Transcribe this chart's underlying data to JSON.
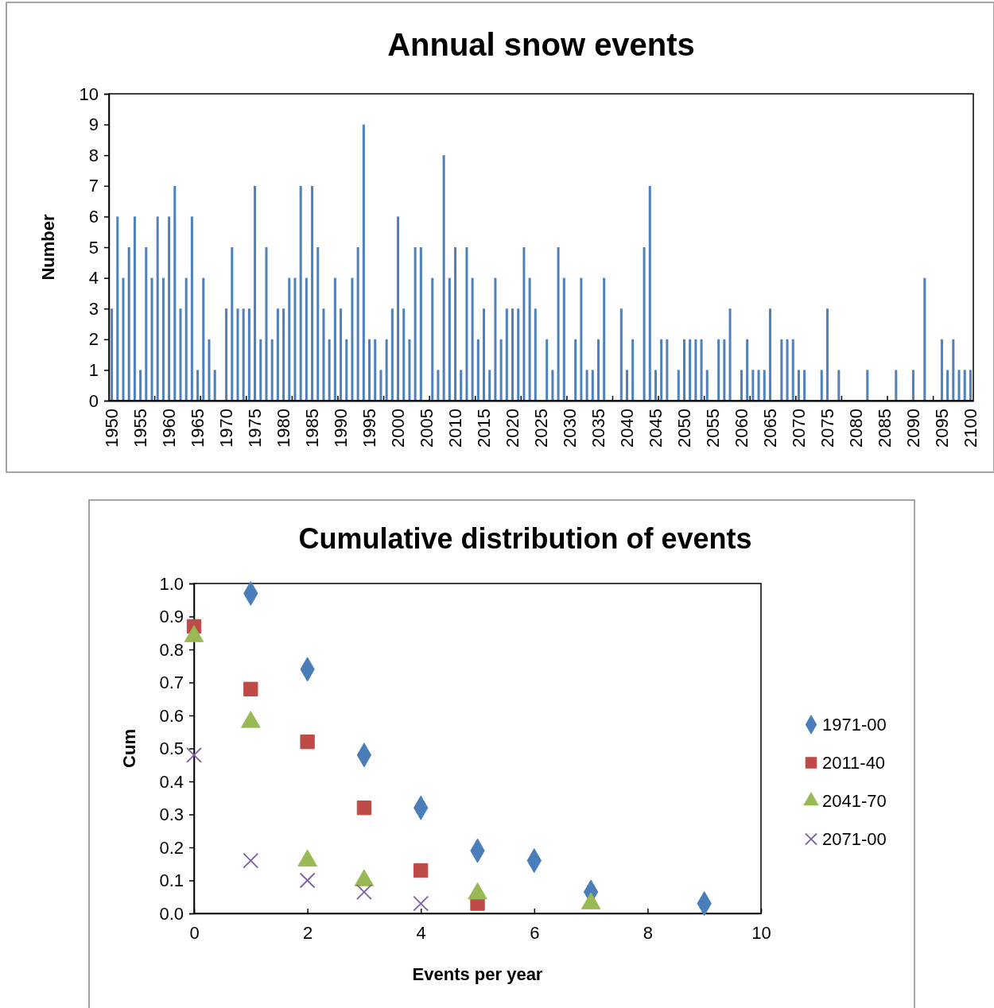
{
  "chart_data": [
    {
      "type": "bar",
      "title": "Annual snow events",
      "ylabel": "Number",
      "color": "#4f81bd",
      "categories": [
        "1950",
        null,
        null,
        null,
        null,
        "1955",
        null,
        null,
        null,
        null,
        "1960",
        null,
        null,
        null,
        null,
        "1965",
        null,
        null,
        null,
        null,
        "1970",
        null,
        null,
        null,
        null,
        "1975",
        null,
        null,
        null,
        null,
        "1980",
        null,
        null,
        null,
        null,
        "1985",
        null,
        null,
        null,
        null,
        "1990",
        null,
        null,
        null,
        null,
        "1995",
        null,
        null,
        null,
        null,
        "2000",
        null,
        null,
        null,
        null,
        "2005",
        null,
        null,
        null,
        null,
        "2010",
        null,
        null,
        null,
        null,
        "2015",
        null,
        null,
        null,
        null,
        "2020",
        null,
        null,
        null,
        null,
        "2025",
        null,
        null,
        null,
        null,
        "2030",
        null,
        null,
        null,
        null,
        "2035",
        null,
        null,
        null,
        null,
        "2040",
        null,
        null,
        null,
        null,
        "2045",
        null,
        null,
        null,
        null,
        "2050",
        null,
        null,
        null,
        null,
        "2055",
        null,
        null,
        null,
        null,
        "2060",
        null,
        null,
        null,
        null,
        "2065",
        null,
        null,
        null,
        null,
        "2070",
        null,
        null,
        null,
        null,
        "2075",
        null,
        null,
        null,
        null,
        "2080",
        null,
        null,
        null,
        null,
        "2085",
        null,
        null,
        null,
        null,
        "2090",
        null,
        null,
        null,
        null,
        "2095",
        null,
        null,
        null,
        null,
        "2100"
      ],
      "values": [
        3,
        6,
        4,
        5,
        6,
        1,
        5,
        4,
        6,
        4,
        6,
        7,
        3,
        4,
        6,
        1,
        4,
        2,
        1,
        0,
        3,
        5,
        3,
        3,
        3,
        7,
        2,
        5,
        2,
        3,
        3,
        4,
        4,
        7,
        4,
        7,
        5,
        3,
        2,
        4,
        3,
        2,
        4,
        5,
        9,
        2,
        2,
        1,
        2,
        3,
        6,
        3,
        2,
        5,
        5,
        0,
        4,
        1,
        8,
        4,
        5,
        1,
        5,
        4,
        2,
        3,
        1,
        4,
        2,
        3,
        3,
        3,
        5,
        4,
        3,
        0,
        2,
        1,
        5,
        4,
        0,
        2,
        4,
        1,
        1,
        2,
        4,
        0,
        0,
        3,
        1,
        2,
        0,
        5,
        7,
        1,
        2,
        2,
        0,
        1,
        2,
        2,
        2,
        2,
        1,
        0,
        2,
        2,
        3,
        0,
        1,
        2,
        1,
        1,
        1,
        3,
        0,
        2,
        2,
        2,
        1,
        1,
        0,
        0,
        1,
        3,
        0,
        1,
        0,
        0,
        0,
        0,
        1,
        0,
        0,
        0,
        0,
        1,
        0,
        0,
        1,
        0,
        4,
        0,
        0,
        2,
        1,
        2,
        1,
        1,
        1
      ],
      "ylim": [
        0,
        10
      ],
      "yticks": [
        0,
        1,
        2,
        3,
        4,
        5,
        6,
        7,
        8,
        9,
        10
      ]
    },
    {
      "type": "scatter",
      "title": "Cumulative distribution of events",
      "xlabel": "Events per year",
      "ylabel": "Cum",
      "legend": "right",
      "xlim": [
        0,
        10
      ],
      "xticks": [
        0,
        2,
        4,
        6,
        8,
        10
      ],
      "ylim": [
        0,
        1
      ],
      "yticks": [
        {
          "value": 0,
          "label": "0.0"
        },
        0.1,
        0.2,
        0.3,
        0.4,
        0.5,
        0.6,
        0.7,
        0.8,
        0.9,
        {
          "value": 1,
          "label": "1.0"
        }
      ],
      "series": [
        {
          "name": "1971-00",
          "color": "#4a7ebb",
          "marker": "diamond",
          "x": [
            1,
            2,
            3,
            4,
            5,
            6,
            7,
            9
          ],
          "values": [
            0.97,
            0.74,
            0.48,
            0.32,
            0.19,
            0.16,
            0.065,
            0.03
          ]
        },
        {
          "name": "2011-40",
          "color": "#be4b48",
          "marker": "square",
          "x": [
            0,
            1,
            2,
            3,
            4,
            5
          ],
          "values": [
            0.87,
            0.68,
            0.52,
            0.32,
            0.13,
            0.03
          ]
        },
        {
          "name": "2041-70",
          "color": "#98b954",
          "marker": "triangle",
          "x": [
            0,
            1,
            2,
            3,
            5,
            7
          ],
          "values": [
            0.84,
            0.58,
            0.16,
            0.1,
            0.06,
            0.03
          ]
        },
        {
          "name": "2071-00",
          "color": "#7d60a0",
          "marker": "cross",
          "x": [
            0,
            1,
            2,
            3,
            4
          ],
          "values": [
            0.48,
            0.16,
            0.1,
            0.065,
            0.03
          ]
        }
      ]
    }
  ]
}
